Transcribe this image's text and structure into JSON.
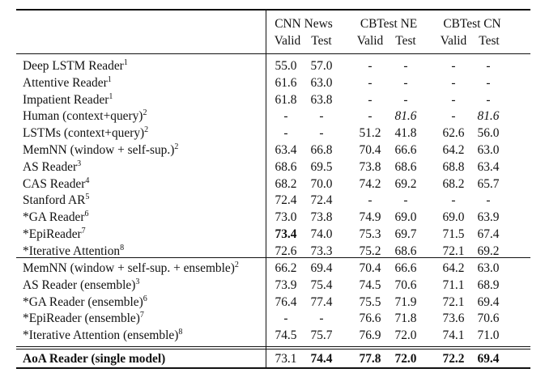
{
  "header": {
    "groups": [
      "CNN News",
      "CBTest NE",
      "CBTest CN"
    ],
    "subcols": [
      "Valid",
      "Test",
      "Valid",
      "Test",
      "Valid",
      "Test"
    ]
  },
  "sections": [
    {
      "rows": [
        {
          "label": "Deep LSTM Reader",
          "sup": "1",
          "values": [
            "55.0",
            "57.0",
            "-",
            "-",
            "-",
            "-"
          ]
        },
        {
          "label": "Attentive Reader",
          "sup": "1",
          "values": [
            "61.6",
            "63.0",
            "-",
            "-",
            "-",
            "-"
          ]
        },
        {
          "label": "Impatient Reader",
          "sup": "1",
          "values": [
            "61.8",
            "63.8",
            "-",
            "-",
            "-",
            "-"
          ]
        },
        {
          "label": "Human (context+query)",
          "sup": "2",
          "values": [
            "-",
            "-",
            "-",
            "81.6",
            "-",
            "81.6"
          ],
          "italic": [
            3,
            5
          ]
        },
        {
          "label": "LSTMs (context+query)",
          "sup": "2",
          "values": [
            "-",
            "-",
            "51.2",
            "41.8",
            "62.6",
            "56.0"
          ]
        },
        {
          "label": "MemNN (window + self-sup.)",
          "sup": "2",
          "values": [
            "63.4",
            "66.8",
            "70.4",
            "66.6",
            "64.2",
            "63.0"
          ]
        },
        {
          "label": "AS Reader",
          "sup": "3",
          "values": [
            "68.6",
            "69.5",
            "73.8",
            "68.6",
            "68.8",
            "63.4"
          ]
        },
        {
          "label": "CAS Reader",
          "sup": "4",
          "values": [
            "68.2",
            "70.0",
            "74.2",
            "69.2",
            "68.2",
            "65.7"
          ]
        },
        {
          "label": "Stanford AR",
          "sup": "5",
          "values": [
            "72.4",
            "72.4",
            "-",
            "-",
            "-",
            "-"
          ]
        },
        {
          "label": "*GA Reader",
          "sup": "6",
          "values": [
            "73.0",
            "73.8",
            "74.9",
            "69.0",
            "69.0",
            "63.9"
          ]
        },
        {
          "label": "*EpiReader",
          "sup": "7",
          "values": [
            "73.4",
            "74.0",
            "75.3",
            "69.7",
            "71.5",
            "67.4"
          ],
          "bold": [
            0
          ]
        },
        {
          "label": "*Iterative Attention",
          "sup": "8",
          "values": [
            "72.6",
            "73.3",
            "75.2",
            "68.6",
            "72.1",
            "69.2"
          ]
        }
      ]
    },
    {
      "rows": [
        {
          "label": "MemNN (window + self-sup. + ensemble)",
          "sup": "2",
          "values": [
            "66.2",
            "69.4",
            "70.4",
            "66.6",
            "64.2",
            "63.0"
          ]
        },
        {
          "label": "AS Reader (ensemble)",
          "sup": "3",
          "values": [
            "73.9",
            "75.4",
            "74.5",
            "70.6",
            "71.1",
            "68.9"
          ]
        },
        {
          "label": "*GA Reader (ensemble)",
          "sup": "6",
          "values": [
            "76.4",
            "77.4",
            "75.5",
            "71.9",
            "72.1",
            "69.4"
          ]
        },
        {
          "label": "*EpiReader (ensemble)",
          "sup": "7",
          "values": [
            "-",
            "-",
            "76.6",
            "71.8",
            "73.6",
            "70.6"
          ]
        },
        {
          "label": "*Iterative Attention (ensemble)",
          "sup": "8",
          "values": [
            "74.5",
            "75.7",
            "76.9",
            "72.0",
            "74.1",
            "71.0"
          ]
        }
      ]
    },
    {
      "rows": [
        {
          "label": "AoA Reader (single model)",
          "sup": "",
          "values": [
            "73.1",
            "74.4",
            "77.8",
            "72.0",
            "72.2",
            "69.4"
          ],
          "label_bold": true,
          "bold": [
            1,
            2,
            3,
            4,
            5
          ]
        }
      ]
    }
  ]
}
